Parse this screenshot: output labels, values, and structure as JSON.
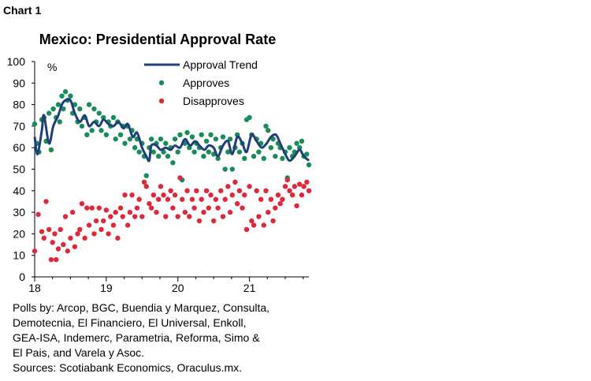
{
  "chart_label": "Chart 1",
  "notes": [
    "Polls by: Arcop, BGC, Buendia y Marquez, Consulta,",
    "Demotecnia, El Financiero, El Universal, Enkoll,",
    "GEA-ISA, Indemerc, Parametria, Reforma, Simo &",
    "El Pais, and Varela y Asoc.",
    "Sources: Scotiabank Economics, Oraculus.mx."
  ],
  "chart_data": {
    "type": "scatter",
    "title": "Mexico: Presidential Approval Rate",
    "ylabel": "%",
    "xlabel": "",
    "ylim": [
      0,
      100
    ],
    "yticks": [
      "0",
      "10",
      "20",
      "30",
      "40",
      "50",
      "60",
      "70",
      "80",
      "90",
      "100"
    ],
    "xticks": [
      "18",
      "19",
      "20",
      "21"
    ],
    "legend_position": "top-right",
    "colors": {
      "trend": "#1f3f7a",
      "approves": "#1a8c5a",
      "disapproves": "#e0283c"
    },
    "series": [
      {
        "name": "Approval Trend",
        "kind": "line",
        "points": [
          [
            18.0,
            65
          ],
          [
            18.04,
            57
          ],
          [
            18.1,
            68
          ],
          [
            18.13,
            75
          ],
          [
            18.2,
            62
          ],
          [
            18.26,
            70
          ],
          [
            18.33,
            75
          ],
          [
            18.38,
            80
          ],
          [
            18.43,
            82
          ],
          [
            18.5,
            82
          ],
          [
            18.56,
            76
          ],
          [
            18.63,
            72
          ],
          [
            18.7,
            75
          ],
          [
            18.76,
            70
          ],
          [
            18.83,
            72
          ],
          [
            18.9,
            70
          ],
          [
            18.96,
            73
          ],
          [
            19.03,
            71
          ],
          [
            19.1,
            70
          ],
          [
            19.17,
            72
          ],
          [
            19.24,
            69
          ],
          [
            19.3,
            71
          ],
          [
            19.37,
            65
          ],
          [
            19.43,
            67
          ],
          [
            19.5,
            60
          ],
          [
            19.56,
            56
          ],
          [
            19.6,
            54
          ],
          [
            19.63,
            61
          ],
          [
            19.7,
            61
          ],
          [
            19.76,
            59
          ],
          [
            19.83,
            60
          ],
          [
            19.9,
            59
          ],
          [
            19.96,
            61
          ],
          [
            20.03,
            60
          ],
          [
            20.1,
            64
          ],
          [
            20.17,
            61
          ],
          [
            20.24,
            63
          ],
          [
            20.3,
            61
          ],
          [
            20.37,
            59
          ],
          [
            20.43,
            61
          ],
          [
            20.5,
            60
          ],
          [
            20.56,
            56
          ],
          [
            20.63,
            61
          ],
          [
            20.7,
            63
          ],
          [
            20.76,
            57
          ],
          [
            20.83,
            65
          ],
          [
            20.9,
            62
          ],
          [
            20.96,
            58
          ],
          [
            21.03,
            66
          ],
          [
            21.1,
            63
          ],
          [
            21.17,
            60
          ],
          [
            21.24,
            62
          ],
          [
            21.3,
            65
          ],
          [
            21.37,
            66
          ],
          [
            21.43,
            62
          ],
          [
            21.5,
            57
          ],
          [
            21.56,
            54
          ],
          [
            21.63,
            56
          ],
          [
            21.7,
            59
          ],
          [
            21.76,
            56
          ],
          [
            21.83,
            54
          ]
        ]
      },
      {
        "name": "Approves",
        "kind": "points",
        "points": [
          [
            18.0,
            71
          ],
          [
            18.03,
            62
          ],
          [
            18.06,
            58
          ],
          [
            18.1,
            73
          ],
          [
            18.13,
            74
          ],
          [
            18.16,
            63
          ],
          [
            18.2,
            76
          ],
          [
            18.23,
            59
          ],
          [
            18.26,
            78
          ],
          [
            18.3,
            74
          ],
          [
            18.33,
            80
          ],
          [
            18.35,
            72
          ],
          [
            18.38,
            84
          ],
          [
            18.4,
            78
          ],
          [
            18.43,
            86
          ],
          [
            18.46,
            82
          ],
          [
            18.5,
            84
          ],
          [
            18.53,
            76
          ],
          [
            18.56,
            80
          ],
          [
            18.6,
            72
          ],
          [
            18.63,
            78
          ],
          [
            18.66,
            70
          ],
          [
            18.7,
            74
          ],
          [
            18.73,
            66
          ],
          [
            18.76,
            80
          ],
          [
            18.8,
            68
          ],
          [
            18.83,
            78
          ],
          [
            18.86,
            72
          ],
          [
            18.9,
            76
          ],
          [
            18.93,
            68
          ],
          [
            18.96,
            74
          ],
          [
            19.0,
            66
          ],
          [
            19.03,
            72
          ],
          [
            19.06,
            70
          ],
          [
            19.1,
            74
          ],
          [
            19.13,
            64
          ],
          [
            19.16,
            72
          ],
          [
            19.2,
            66
          ],
          [
            19.23,
            70
          ],
          [
            19.26,
            62
          ],
          [
            19.3,
            70
          ],
          [
            19.33,
            64
          ],
          [
            19.36,
            68
          ],
          [
            19.4,
            60
          ],
          [
            19.43,
            64
          ],
          [
            19.46,
            58
          ],
          [
            19.5,
            62
          ],
          [
            19.53,
            56
          ],
          [
            19.56,
            47
          ],
          [
            19.6,
            60
          ],
          [
            19.63,
            64
          ],
          [
            19.66,
            58
          ],
          [
            19.7,
            62
          ],
          [
            19.73,
            56
          ],
          [
            19.76,
            64
          ],
          [
            19.8,
            58
          ],
          [
            19.83,
            62
          ],
          [
            19.86,
            56
          ],
          [
            19.9,
            60
          ],
          [
            19.93,
            53
          ],
          [
            19.96,
            64
          ],
          [
            20.0,
            58
          ],
          [
            20.03,
            66
          ],
          [
            20.06,
            45
          ],
          [
            20.1,
            62
          ],
          [
            20.13,
            67
          ],
          [
            20.16,
            60
          ],
          [
            20.2,
            65
          ],
          [
            20.23,
            58
          ],
          [
            20.26,
            62
          ],
          [
            20.3,
            60
          ],
          [
            20.33,
            66
          ],
          [
            20.36,
            56
          ],
          [
            20.4,
            63
          ],
          [
            20.43,
            58
          ],
          [
            20.46,
            66
          ],
          [
            20.5,
            57
          ],
          [
            20.53,
            64
          ],
          [
            20.56,
            55
          ],
          [
            20.6,
            60
          ],
          [
            20.63,
            65
          ],
          [
            20.66,
            50
          ],
          [
            20.7,
            58
          ],
          [
            20.73,
            64
          ],
          [
            20.76,
            50
          ],
          [
            20.8,
            60
          ],
          [
            20.83,
            66
          ],
          [
            20.86,
            58
          ],
          [
            20.9,
            62
          ],
          [
            20.93,
            55
          ],
          [
            20.96,
            73
          ],
          [
            21.0,
            74
          ],
          [
            21.03,
            66
          ],
          [
            21.06,
            56
          ],
          [
            21.1,
            64
          ],
          [
            21.13,
            58
          ],
          [
            21.16,
            62
          ],
          [
            21.2,
            55
          ],
          [
            21.23,
            70
          ],
          [
            21.26,
            68
          ],
          [
            21.3,
            60
          ],
          [
            21.33,
            64
          ],
          [
            21.36,
            56
          ],
          [
            21.4,
            62
          ],
          [
            21.43,
            60
          ],
          [
            21.46,
            55
          ],
          [
            21.5,
            58
          ],
          [
            21.53,
            46
          ],
          [
            21.56,
            60
          ],
          [
            21.6,
            56
          ],
          [
            21.63,
            58
          ],
          [
            21.66,
            62
          ],
          [
            21.7,
            60
          ],
          [
            21.73,
            63
          ],
          [
            21.76,
            56
          ],
          [
            21.8,
            57
          ],
          [
            21.83,
            52
          ]
        ]
      },
      {
        "name": "Disapproves",
        "kind": "points",
        "points": [
          [
            18.0,
            12
          ],
          [
            18.05,
            29
          ],
          [
            18.1,
            21
          ],
          [
            18.13,
            18
          ],
          [
            18.16,
            35
          ],
          [
            18.2,
            22
          ],
          [
            18.23,
            8
          ],
          [
            18.25,
            16
          ],
          [
            18.28,
            20
          ],
          [
            18.3,
            8
          ],
          [
            18.33,
            13
          ],
          [
            18.36,
            22
          ],
          [
            18.4,
            15
          ],
          [
            18.43,
            28
          ],
          [
            18.46,
            12
          ],
          [
            18.5,
            18
          ],
          [
            18.53,
            30
          ],
          [
            18.56,
            14
          ],
          [
            18.6,
            20
          ],
          [
            18.63,
            22
          ],
          [
            18.66,
            34
          ],
          [
            18.7,
            18
          ],
          [
            18.73,
            32
          ],
          [
            18.76,
            24
          ],
          [
            18.8,
            32
          ],
          [
            18.83,
            20
          ],
          [
            18.86,
            26
          ],
          [
            18.9,
            32
          ],
          [
            18.93,
            22
          ],
          [
            18.96,
            26
          ],
          [
            19.0,
            31
          ],
          [
            19.03,
            20
          ],
          [
            19.06,
            28
          ],
          [
            19.1,
            24
          ],
          [
            19.13,
            30
          ],
          [
            19.16,
            18
          ],
          [
            19.2,
            32
          ],
          [
            19.23,
            28
          ],
          [
            19.26,
            38
          ],
          [
            19.3,
            24
          ],
          [
            19.33,
            30
          ],
          [
            19.36,
            38
          ],
          [
            19.4,
            28
          ],
          [
            19.43,
            32
          ],
          [
            19.46,
            36
          ],
          [
            19.5,
            28
          ],
          [
            19.53,
            44
          ],
          [
            19.56,
            42
          ],
          [
            19.6,
            34
          ],
          [
            19.63,
            32
          ],
          [
            19.66,
            38
          ],
          [
            19.7,
            30
          ],
          [
            19.73,
            36
          ],
          [
            19.76,
            42
          ],
          [
            19.8,
            38
          ],
          [
            19.83,
            28
          ],
          [
            19.86,
            36
          ],
          [
            19.9,
            40
          ],
          [
            19.93,
            32
          ],
          [
            19.96,
            38
          ],
          [
            20.0,
            28
          ],
          [
            20.03,
            46
          ],
          [
            20.06,
            36
          ],
          [
            20.1,
            30
          ],
          [
            20.13,
            40
          ],
          [
            20.16,
            28
          ],
          [
            20.2,
            36
          ],
          [
            20.23,
            32
          ],
          [
            20.26,
            40
          ],
          [
            20.3,
            26
          ],
          [
            20.33,
            36
          ],
          [
            20.36,
            30
          ],
          [
            20.4,
            40
          ],
          [
            20.43,
            32
          ],
          [
            20.46,
            38
          ],
          [
            20.5,
            26
          ],
          [
            20.53,
            36
          ],
          [
            20.56,
            32
          ],
          [
            20.6,
            40
          ],
          [
            20.63,
            28
          ],
          [
            20.66,
            36
          ],
          [
            20.7,
            42
          ],
          [
            20.73,
            30
          ],
          [
            20.76,
            38
          ],
          [
            20.8,
            44
          ],
          [
            20.83,
            34
          ],
          [
            20.86,
            40
          ],
          [
            20.9,
            32
          ],
          [
            20.93,
            38
          ],
          [
            20.96,
            22
          ],
          [
            21.0,
            42
          ],
          [
            21.03,
            26
          ],
          [
            21.06,
            24
          ],
          [
            21.1,
            40
          ],
          [
            21.13,
            28
          ],
          [
            21.16,
            36
          ],
          [
            21.2,
            24
          ],
          [
            21.23,
            40
          ],
          [
            21.26,
            30
          ],
          [
            21.3,
            36
          ],
          [
            21.33,
            26
          ],
          [
            21.36,
            32
          ],
          [
            21.4,
            38
          ],
          [
            21.43,
            34
          ],
          [
            21.46,
            36
          ],
          [
            21.5,
            42
          ],
          [
            21.53,
            45
          ],
          [
            21.56,
            40
          ],
          [
            21.6,
            38
          ],
          [
            21.63,
            42
          ],
          [
            21.66,
            33
          ],
          [
            21.7,
            43
          ],
          [
            21.73,
            38
          ],
          [
            21.76,
            42
          ],
          [
            21.8,
            44
          ],
          [
            21.83,
            40
          ]
        ]
      }
    ]
  }
}
